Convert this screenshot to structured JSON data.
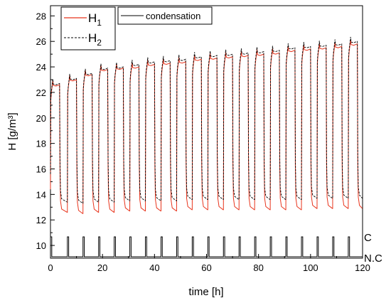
{
  "chart_data": {
    "type": "line",
    "xlabel": "time [h]",
    "ylabel": "H [g/m³]",
    "xlim": [
      0,
      120
    ],
    "ylim": [
      9,
      28.8
    ],
    "xticks": [
      "0",
      "20",
      "40",
      "60",
      "80",
      "100",
      "120"
    ],
    "yticks": [
      "10",
      "12",
      "14",
      "16",
      "18",
      "20",
      "22",
      "24",
      "26",
      "28"
    ],
    "grid": false,
    "legend": {
      "entries": [
        {
          "label": "H",
          "sub": "1",
          "color": "#e8341c",
          "style": "solid"
        },
        {
          "label": "H",
          "sub": "2",
          "color": "#000000",
          "style": "dashed"
        }
      ],
      "placement": "top-left"
    },
    "legend2": {
      "label": "condensation",
      "placement": "top-left"
    },
    "condensation_levels": {
      "high": "C",
      "low": "N.C"
    },
    "cycle_period_h": 6,
    "cycle_high_duration_h": 3.5,
    "cycles_high_start_h": [
      0,
      6.5,
      12.5,
      18.5,
      24.5,
      30.5,
      36.5,
      42.5,
      48.5,
      54.5,
      60.5,
      66.5,
      72.5,
      78.5,
      84.5,
      90.5,
      96.5,
      102.5,
      108.5,
      114.5
    ],
    "series": [
      {
        "name": "H1",
        "color": "#e8341c",
        "peak_values": [
          22.6,
          23.0,
          23.4,
          23.8,
          23.9,
          24.0,
          24.2,
          24.3,
          24.4,
          24.6,
          24.7,
          24.8,
          24.9,
          25.0,
          25.1,
          25.3,
          25.4,
          25.5,
          25.6,
          25.8
        ],
        "trough_values": [
          12.6,
          12.5,
          12.6,
          12.6,
          12.7,
          12.7,
          12.7,
          12.7,
          12.8,
          12.8,
          12.8,
          12.8,
          12.8,
          12.8,
          12.8,
          12.8,
          12.9,
          12.9,
          12.9,
          12.9
        ]
      },
      {
        "name": "H2",
        "color": "#000000",
        "peak_values": [
          22.7,
          23.1,
          23.5,
          23.9,
          24.0,
          24.2,
          24.4,
          24.5,
          24.6,
          24.8,
          24.9,
          25.0,
          25.1,
          25.2,
          25.3,
          25.5,
          25.6,
          25.7,
          25.8,
          26.0
        ],
        "trough_values": [
          13.4,
          13.3,
          13.4,
          13.4,
          13.5,
          13.5,
          13.5,
          13.5,
          13.6,
          13.6,
          13.6,
          13.6,
          13.6,
          13.6,
          13.6,
          13.6,
          13.7,
          13.7,
          13.7,
          13.7
        ]
      }
    ]
  }
}
